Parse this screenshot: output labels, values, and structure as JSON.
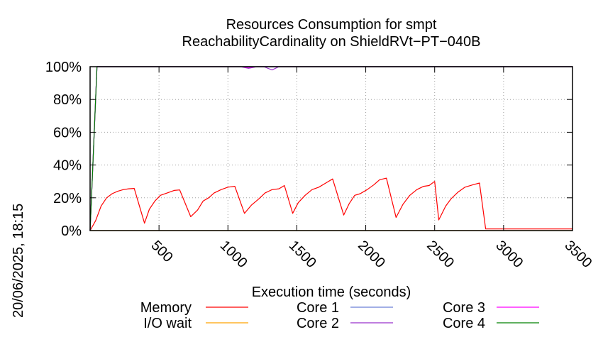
{
  "timestamp": "20/06/2025, 18:15",
  "chart_data": {
    "type": "line",
    "title_line1": "Resources Consumption for smpt",
    "title_line2": "ReachabilityCardinality on ShieldRVt−PT−040B",
    "xlabel": "Execution time (seconds)",
    "ylabel": "",
    "xlim": [
      0,
      3500
    ],
    "ylim": [
      0,
      100
    ],
    "grid": true,
    "legend_position": "bottom",
    "x_ticks": [
      {
        "value": 500,
        "label": "500"
      },
      {
        "value": 1000,
        "label": "1000"
      },
      {
        "value": 1500,
        "label": "1500"
      },
      {
        "value": 2000,
        "label": "2000"
      },
      {
        "value": 2500,
        "label": "2500"
      },
      {
        "value": 3000,
        "label": "3000"
      },
      {
        "value": 3500,
        "label": "3500"
      }
    ],
    "y_ticks": [
      {
        "value": 0,
        "label": "0%"
      },
      {
        "value": 20,
        "label": "20%"
      },
      {
        "value": 40,
        "label": "40%"
      },
      {
        "value": 60,
        "label": "60%"
      },
      {
        "value": 80,
        "label": "80%"
      },
      {
        "value": 100,
        "label": "100%"
      }
    ],
    "series": [
      {
        "name": "Memory",
        "color": "#ff0000",
        "points": [
          [
            0,
            0
          ],
          [
            40,
            6
          ],
          [
            80,
            15
          ],
          [
            120,
            20
          ],
          [
            160,
            22.5
          ],
          [
            200,
            24
          ],
          [
            240,
            25
          ],
          [
            280,
            25.5
          ],
          [
            320,
            25.7
          ],
          [
            395,
            4.5
          ],
          [
            430,
            13
          ],
          [
            470,
            18
          ],
          [
            510,
            21.5
          ],
          [
            560,
            23
          ],
          [
            610,
            24.5
          ],
          [
            650,
            24.8
          ],
          [
            730,
            8.5
          ],
          [
            780,
            12.5
          ],
          [
            820,
            18
          ],
          [
            860,
            20
          ],
          [
            900,
            23
          ],
          [
            950,
            25
          ],
          [
            1000,
            26.5
          ],
          [
            1050,
            27
          ],
          [
            1120,
            10.5
          ],
          [
            1170,
            15.5
          ],
          [
            1220,
            19
          ],
          [
            1270,
            23
          ],
          [
            1320,
            25
          ],
          [
            1370,
            25.5
          ],
          [
            1410,
            27.5
          ],
          [
            1470,
            10.5
          ],
          [
            1510,
            17
          ],
          [
            1560,
            21.5
          ],
          [
            1610,
            25
          ],
          [
            1660,
            26.5
          ],
          [
            1710,
            29
          ],
          [
            1760,
            31.5
          ],
          [
            1840,
            9.5
          ],
          [
            1880,
            16.5
          ],
          [
            1920,
            21.5
          ],
          [
            1960,
            22.5
          ],
          [
            2010,
            25
          ],
          [
            2060,
            28
          ],
          [
            2100,
            31
          ],
          [
            2150,
            32
          ],
          [
            2220,
            8
          ],
          [
            2270,
            16
          ],
          [
            2320,
            21.5
          ],
          [
            2370,
            25
          ],
          [
            2420,
            27
          ],
          [
            2460,
            27.5
          ],
          [
            2500,
            30
          ],
          [
            2530,
            6.5
          ],
          [
            2580,
            15
          ],
          [
            2620,
            19.5
          ],
          [
            2670,
            23.5
          ],
          [
            2720,
            26.5
          ],
          [
            2780,
            28
          ],
          [
            2825,
            29
          ],
          [
            2870,
            1
          ],
          [
            3000,
            1
          ],
          [
            3200,
            1
          ],
          [
            3400,
            1
          ],
          [
            3500,
            1
          ]
        ]
      },
      {
        "name": "I/O wait",
        "color": "#ffa500",
        "points": [
          [
            0,
            0
          ],
          [
            3500,
            0
          ]
        ]
      },
      {
        "name": "Core 1",
        "color": "#6a7fd8",
        "points": [
          [
            0,
            0
          ],
          [
            50,
            100
          ],
          [
            3500,
            100
          ]
        ]
      },
      {
        "name": "Core 2",
        "color": "#9932cc",
        "points": [
          [
            0,
            0
          ],
          [
            50,
            100
          ],
          [
            1090,
            100
          ],
          [
            1150,
            99
          ],
          [
            1210,
            100
          ],
          [
            1260,
            100
          ],
          [
            1320,
            98
          ],
          [
            1370,
            100
          ],
          [
            3500,
            100
          ]
        ]
      },
      {
        "name": "Core 3",
        "color": "#ff00ff",
        "points": [
          [
            0,
            0
          ],
          [
            50,
            100
          ],
          [
            1090,
            100
          ],
          [
            1150,
            99.5
          ],
          [
            1210,
            100
          ],
          [
            3500,
            100
          ]
        ]
      },
      {
        "name": "Core 4",
        "color": "#008000",
        "points": [
          [
            0,
            0
          ],
          [
            50,
            100
          ],
          [
            3500,
            100
          ]
        ]
      }
    ]
  }
}
